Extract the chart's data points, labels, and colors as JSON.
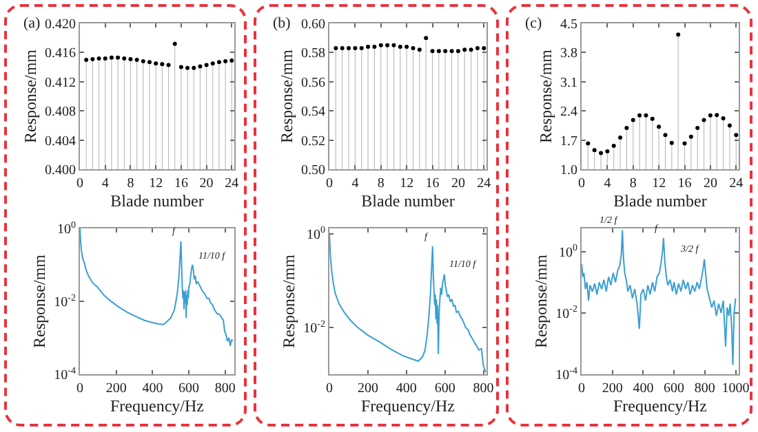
{
  "chart_data": [
    {
      "type": "lollipop",
      "annotations": [
        "(a)"
      ],
      "xlabel": "Blade number",
      "ylabel": "Response/mm",
      "x": [
        1,
        2,
        3,
        4,
        5,
        6,
        7,
        8,
        9,
        10,
        11,
        12,
        13,
        14,
        15,
        16,
        17,
        18,
        19,
        20,
        21,
        22,
        23,
        24
      ],
      "series": [
        {
          "color": "#000000",
          "values": [
            0.415,
            0.4151,
            0.4152,
            0.4152,
            0.4153,
            0.4153,
            0.4152,
            0.4151,
            0.415,
            0.4148,
            0.4147,
            0.4145,
            0.4144,
            0.4143,
            0.4172,
            0.414,
            0.4139,
            0.4139,
            0.4141,
            0.4143,
            0.4145,
            0.4147,
            0.4148,
            0.4149
          ]
        }
      ],
      "marker": "circle",
      "xlim": [
        0,
        24.4
      ],
      "xticks": [
        0,
        4,
        8,
        12,
        16,
        20,
        24
      ],
      "ylim": [
        0.4,
        0.42
      ],
      "yticks": [
        {
          "value": 0.4,
          "label": "0.400"
        },
        {
          "value": 0.404,
          "label": "0.404"
        },
        {
          "value": 0.408,
          "label": "0.408"
        },
        {
          "value": 0.412,
          "label": "0.412"
        },
        {
          "value": 0.416,
          "label": "0.416"
        },
        {
          "value": 0.42,
          "label": "0.420"
        }
      ]
    },
    {
      "type": "lollipop",
      "annotations": [
        "(b)"
      ],
      "xlabel": "Blade number",
      "ylabel": "Response/mm",
      "x": [
        1,
        2,
        3,
        4,
        5,
        6,
        7,
        8,
        9,
        10,
        11,
        12,
        13,
        14,
        15,
        16,
        17,
        18,
        19,
        20,
        21,
        22,
        23,
        24
      ],
      "series": [
        {
          "color": "#000000",
          "values": [
            0.583,
            0.583,
            0.583,
            0.583,
            0.583,
            0.584,
            0.584,
            0.585,
            0.585,
            0.585,
            0.584,
            0.584,
            0.583,
            0.582,
            0.59,
            0.581,
            0.581,
            0.581,
            0.581,
            0.581,
            0.582,
            0.582,
            0.583,
            0.583
          ]
        }
      ],
      "marker": "circle",
      "xlim": [
        0,
        24.4
      ],
      "xticks": [
        0,
        4,
        8,
        12,
        16,
        20,
        24
      ],
      "ylim": [
        0.5,
        0.6
      ],
      "yticks": [
        {
          "value": 0.5,
          "label": "0.50"
        },
        {
          "value": 0.52,
          "label": "0.52"
        },
        {
          "value": 0.54,
          "label": "0.54"
        },
        {
          "value": 0.56,
          "label": "0.56"
        },
        {
          "value": 0.58,
          "label": "0.58"
        },
        {
          "value": 0.6,
          "label": "0.60"
        }
      ]
    },
    {
      "type": "lollipop",
      "annotations": [
        "(c)"
      ],
      "xlabel": "Blade number",
      "ylabel": "Response/mm",
      "x": [
        1,
        2,
        3,
        4,
        5,
        6,
        7,
        8,
        9,
        10,
        11,
        12,
        13,
        14,
        15,
        16,
        17,
        18,
        19,
        20,
        21,
        22,
        23,
        24
      ],
      "series": [
        {
          "color": "#000000",
          "values": [
            1.62,
            1.46,
            1.39,
            1.43,
            1.56,
            1.76,
            1.99,
            2.18,
            2.29,
            2.29,
            2.21,
            2.02,
            1.82,
            1.63,
            4.23,
            1.62,
            1.78,
            1.99,
            2.18,
            2.29,
            2.3,
            2.22,
            2.05,
            1.82
          ]
        }
      ],
      "marker": "circle",
      "xlim": [
        0,
        24.4
      ],
      "xticks": [
        0,
        4,
        8,
        12,
        16,
        20,
        24
      ],
      "ylim": [
        1.0,
        4.5
      ],
      "yticks": [
        {
          "value": 1.0,
          "label": "1.0"
        },
        {
          "value": 1.7,
          "label": "1.7"
        },
        {
          "value": 2.4,
          "label": "2.4"
        },
        {
          "value": 3.1,
          "label": "3.1"
        },
        {
          "value": 3.8,
          "label": "3.8"
        },
        {
          "value": 4.5,
          "label": "4.5"
        }
      ]
    },
    {
      "type": "line",
      "xlabel": "Frequency/Hz",
      "ylabel": "Response/mm",
      "log": true,
      "annotations": [
        {
          "text": "f",
          "x": 556,
          "y": 0.44
        },
        {
          "text": "11/10 f",
          "x": 620,
          "y": 0.1
        }
      ],
      "x": [
        0,
        3,
        8,
        15,
        24,
        35,
        47,
        70,
        95,
        130,
        166,
        210,
        260,
        310,
        355,
        400,
        430,
        460,
        480,
        500,
        520,
        535,
        544,
        550,
        556,
        560,
        563,
        567,
        570,
        573,
        576,
        579,
        582,
        585,
        588,
        591,
        594,
        597,
        600,
        605,
        610,
        615,
        620,
        625,
        630,
        635,
        640,
        648,
        655,
        663,
        672,
        680,
        690,
        700,
        710,
        720,
        730,
        740,
        750,
        757,
        765,
        775,
        781,
        790,
        797,
        805,
        812,
        820,
        828,
        835,
        840
      ],
      "series": [
        {
          "color": "#3a9fd3",
          "values": [
            1.0,
            0.5,
            0.25,
            0.15,
            0.115,
            0.07,
            0.05,
            0.032,
            0.025,
            0.015,
            0.0105,
            0.0072,
            0.005,
            0.0038,
            0.003,
            0.0026,
            0.0024,
            0.0023,
            0.0028,
            0.0035,
            0.0058,
            0.015,
            0.04,
            0.12,
            0.44,
            0.1,
            0.027,
            0.012,
            0.02,
            0.006,
            0.018,
            0.009,
            0.02,
            0.0035,
            0.015,
            0.008,
            0.02,
            0.012,
            0.025,
            0.03,
            0.05,
            0.08,
            0.1,
            0.07,
            0.04,
            0.05,
            0.03,
            0.035,
            0.03,
            0.025,
            0.02,
            0.018,
            0.015,
            0.012,
            0.012,
            0.009,
            0.008,
            0.006,
            0.005,
            0.0045,
            0.0045,
            0.004,
            0.0035,
            0.003,
            0.0015,
            0.0012,
            0.0008,
            0.001,
            0.0006,
            0.0009,
            0.0008
          ]
        }
      ],
      "xlim": [
        0,
        850
      ],
      "xticks": [
        0,
        200,
        400,
        600,
        800
      ],
      "ylim": [
        0.0001,
        1
      ],
      "yticks": [
        {
          "value": 0.0001,
          "label": "10$^{-4}$"
        },
        {
          "value": 0.01,
          "label": "10$^{-2}$"
        },
        {
          "value": 1,
          "label": "10$^{0}$"
        }
      ]
    },
    {
      "type": "line",
      "xlabel": "Frequency/Hz",
      "ylabel": "Response/mm",
      "log": true,
      "annotations": [
        {
          "text": "f",
          "x": 536,
          "y": 0.54
        },
        {
          "text": "11/10 f",
          "x": 597,
          "y": 0.135
        }
      ],
      "x": [
        0,
        5,
        12,
        20,
        30,
        50,
        77,
        110,
        147,
        200,
        264,
        320,
        380,
        430,
        462,
        485,
        497,
        508,
        518,
        525,
        530,
        536,
        540,
        543,
        547,
        550,
        553,
        556,
        559,
        562,
        566,
        570,
        574,
        578,
        583,
        588,
        593,
        597,
        602,
        608,
        613,
        620,
        628,
        636,
        645,
        652,
        660,
        670,
        680,
        690,
        700,
        707,
        720,
        730,
        745,
        753,
        765,
        777,
        790,
        800,
        806,
        812
      ],
      "series": [
        {
          "color": "#3a9fd3",
          "values": [
            1.0,
            0.35,
            0.16,
            0.09,
            0.054,
            0.032,
            0.021,
            0.014,
            0.01,
            0.0068,
            0.0048,
            0.0034,
            0.0025,
            0.0021,
            0.0019,
            0.0024,
            0.0033,
            0.007,
            0.02,
            0.054,
            0.15,
            0.54,
            0.12,
            0.065,
            0.03,
            0.05,
            0.015,
            0.04,
            0.012,
            0.03,
            0.0027,
            0.02,
            0.04,
            0.07,
            0.05,
            0.09,
            0.11,
            0.135,
            0.08,
            0.06,
            0.045,
            0.05,
            0.035,
            0.04,
            0.028,
            0.03,
            0.021,
            0.022,
            0.017,
            0.015,
            0.012,
            0.01,
            0.009,
            0.007,
            0.0055,
            0.0048,
            0.004,
            0.0033,
            0.0035,
            0.0015,
            0.0013,
            0.0011
          ]
        }
      ],
      "xlim": [
        0,
        816
      ],
      "xticks": [
        0,
        200,
        400,
        600,
        800
      ],
      "ylim": [
        0.001,
        1.3
      ],
      "yticks": [
        {
          "value": 0.01,
          "label": "10$^{-2}$"
        },
        {
          "value": 1,
          "label": "10$^{0}$"
        }
      ]
    },
    {
      "type": "line",
      "xlabel": "Frequency/Hz",
      "ylabel": "Response/mm",
      "log": true,
      "annotations": [
        {
          "text": "1/2 f",
          "x": 265,
          "y": 5.0
        },
        {
          "text": "f",
          "x": 532,
          "y": 2.8
        },
        {
          "text": "3/2 f",
          "x": 797,
          "y": 0.56
        }
      ],
      "x": [
        0,
        8,
        15,
        25,
        35,
        45,
        55,
        70,
        85,
        100,
        115,
        130,
        145,
        160,
        175,
        190,
        205,
        220,
        235,
        248,
        258,
        265,
        272,
        280,
        290,
        300,
        315,
        330,
        345,
        360,
        375,
        385,
        400,
        415,
        430,
        445,
        460,
        475,
        490,
        505,
        515,
        525,
        532,
        540,
        550,
        560,
        575,
        590,
        600,
        615,
        630,
        645,
        660,
        675,
        690,
        705,
        720,
        735,
        750,
        765,
        780,
        790,
        797,
        805,
        815,
        830,
        845,
        860,
        875,
        890,
        905,
        920,
        935,
        945,
        955,
        965,
        975,
        982,
        990,
        1000
      ],
      "series": [
        {
          "color": "#3a9fd3",
          "values": [
            0.4,
            0.15,
            0.2,
            0.06,
            0.1,
            0.025,
            0.08,
            0.05,
            0.09,
            0.04,
            0.1,
            0.06,
            0.12,
            0.05,
            0.15,
            0.08,
            0.2,
            0.1,
            0.25,
            0.35,
            0.8,
            5.0,
            0.6,
            0.2,
            0.12,
            0.05,
            0.08,
            0.03,
            0.06,
            0.02,
            0.003,
            0.04,
            0.06,
            0.025,
            0.08,
            0.04,
            0.1,
            0.05,
            0.15,
            0.2,
            0.4,
            1.0,
            2.8,
            0.5,
            0.15,
            0.08,
            0.12,
            0.05,
            0.1,
            0.04,
            0.09,
            0.05,
            0.12,
            0.06,
            0.1,
            0.04,
            0.08,
            0.05,
            0.1,
            0.06,
            0.15,
            0.3,
            0.56,
            0.2,
            0.06,
            0.03,
            0.015,
            0.025,
            0.008,
            0.02,
            0.01,
            0.025,
            0.0008,
            0.015,
            0.008,
            0.02,
            0.003,
            0.0002,
            0.01,
            0.03
          ]
        }
      ],
      "xlim": [
        0,
        1020
      ],
      "xticks": [
        0,
        200,
        400,
        600,
        800,
        1000
      ],
      "ylim": [
        0.0001,
        5.7
      ],
      "yticks": [
        {
          "value": 0.0001,
          "label": "10$^{-4}$"
        },
        {
          "value": 0.01,
          "label": "10$^{-2}$"
        },
        {
          "value": 1,
          "label": "10$^{0}$"
        }
      ]
    }
  ]
}
